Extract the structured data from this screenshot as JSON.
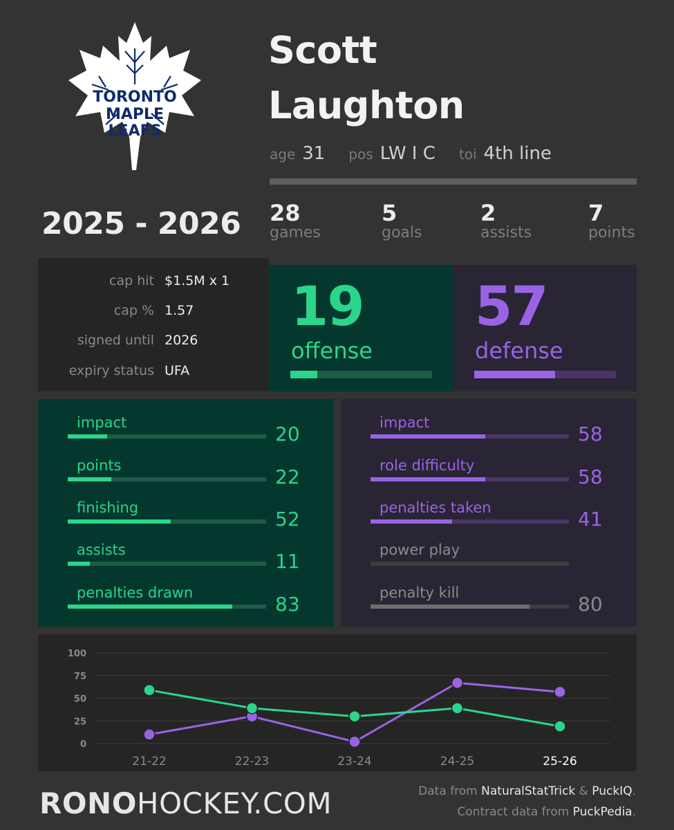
{
  "logo": {
    "line1": "TORONTO",
    "line2": "MAPLE",
    "line3": "LEAFS"
  },
  "player": {
    "first_name": "Scott",
    "last_name": "Laughton",
    "age_label": "age",
    "age": "31",
    "pos_label": "pos",
    "pos": "LW I C",
    "toi_label": "toi",
    "toi": "4th line"
  },
  "season": "2025 - 2026",
  "stats": [
    {
      "value": "28",
      "label": "games"
    },
    {
      "value": "5",
      "label": "goals"
    },
    {
      "value": "2",
      "label": "assists"
    },
    {
      "value": "7",
      "label": "points"
    }
  ],
  "contract": [
    {
      "label": "cap hit",
      "value": "$1.5M x 1"
    },
    {
      "label": "cap %",
      "value": "1.57"
    },
    {
      "label": "signed until",
      "value": "2026"
    },
    {
      "label": "expiry status",
      "value": "UFA"
    }
  ],
  "offense": {
    "value": "19",
    "label": "offense",
    "fraction": 0.19
  },
  "defense": {
    "value": "57",
    "label": "defense",
    "fraction": 0.57
  },
  "offense_metrics": [
    {
      "label": "impact",
      "value": "20",
      "fraction": 0.2
    },
    {
      "label": "points",
      "value": "22",
      "fraction": 0.22
    },
    {
      "label": "finishing",
      "value": "52",
      "fraction": 0.52
    },
    {
      "label": "assists",
      "value": "11",
      "fraction": 0.11
    },
    {
      "label": "penalties drawn",
      "value": "83",
      "fraction": 0.83
    }
  ],
  "defense_metrics": [
    {
      "label": "impact",
      "value": "58",
      "fraction": 0.58,
      "active": true
    },
    {
      "label": "role difficulty",
      "value": "58",
      "fraction": 0.58,
      "active": true
    },
    {
      "label": "penalties taken",
      "value": "41",
      "fraction": 0.41,
      "active": true
    },
    {
      "label": "power play",
      "value": "",
      "fraction": 0,
      "active": false
    },
    {
      "label": "penalty kill",
      "value": "80",
      "fraction": 0.8,
      "active": false
    }
  ],
  "colors": {
    "offense": "#2bd68a",
    "offense_track": "#1d5c44",
    "defense": "#9a63e6",
    "defense_track": "#4a3566",
    "inactive": "#6e6e6e",
    "inactive_text": "#8a8a8a"
  },
  "chart_data": {
    "type": "line",
    "categories": [
      "21-22",
      "22-23",
      "23-24",
      "24-25",
      "25-26"
    ],
    "highlight_category": "25-26",
    "ylim": [
      0,
      100
    ],
    "yticks": [
      0,
      25,
      50,
      75,
      100
    ],
    "grid": true,
    "series": [
      {
        "key": "offense",
        "values": [
          59,
          39,
          30,
          39,
          19
        ]
      },
      {
        "key": "defense",
        "values": [
          10,
          30,
          2,
          67,
          57
        ]
      }
    ]
  },
  "footer": {
    "brand_bold": "RONO",
    "brand_rest": "HOCKEY.COM",
    "credit1_prefix": "Data from ",
    "credit1_src1": "NaturalStatTrick",
    "credit1_and": " & ",
    "credit1_src2": "PuckIQ",
    "credit1_suffix": ".",
    "credit2_prefix": "Contract data from ",
    "credit2_src": "PuckPedia",
    "credit2_suffix": "."
  }
}
